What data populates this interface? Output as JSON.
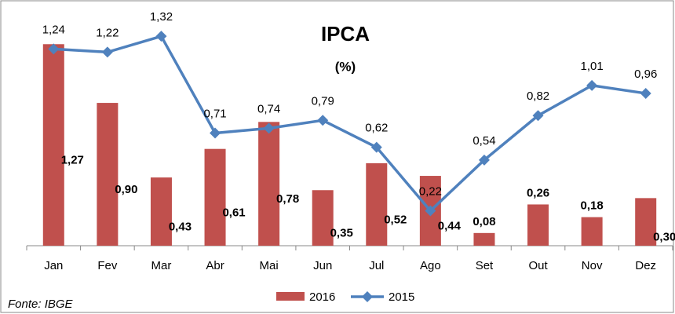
{
  "chart_data": {
    "type": "combo",
    "title": "IPCA",
    "subtitle": "(%)",
    "source": "Fonte: IBGE",
    "categories": [
      "Jan",
      "Fev",
      "Mar",
      "Abr",
      "Mai",
      "Jun",
      "Jul",
      "Ago",
      "Set",
      "Out",
      "Nov",
      "Dez"
    ],
    "series": [
      {
        "name": "2016",
        "type": "bar",
        "color": "#c0504d",
        "values": [
          1.27,
          0.9,
          0.43,
          0.61,
          0.78,
          0.35,
          0.52,
          0.44,
          0.08,
          0.26,
          0.18,
          0.3
        ],
        "value_labels": [
          "1,27",
          "0,90",
          "0,43",
          "0,61",
          "0,78",
          "0,35",
          "0,52",
          "0,44",
          "0,08",
          "0,26",
          "0,18",
          "0,30"
        ]
      },
      {
        "name": "2015",
        "type": "line",
        "color": "#4f81bd",
        "values": [
          1.24,
          1.22,
          1.32,
          0.71,
          0.74,
          0.79,
          0.62,
          0.22,
          0.54,
          0.82,
          1.01,
          0.96
        ],
        "value_labels": [
          "1,24",
          "1,22",
          "1,32",
          "0,71",
          "0,74",
          "0,79",
          "0,62",
          "0,22",
          "0,54",
          "0,82",
          "1,01",
          "0,96"
        ]
      }
    ],
    "ylim": [
      0,
      1.4
    ],
    "legend": "bottom"
  }
}
